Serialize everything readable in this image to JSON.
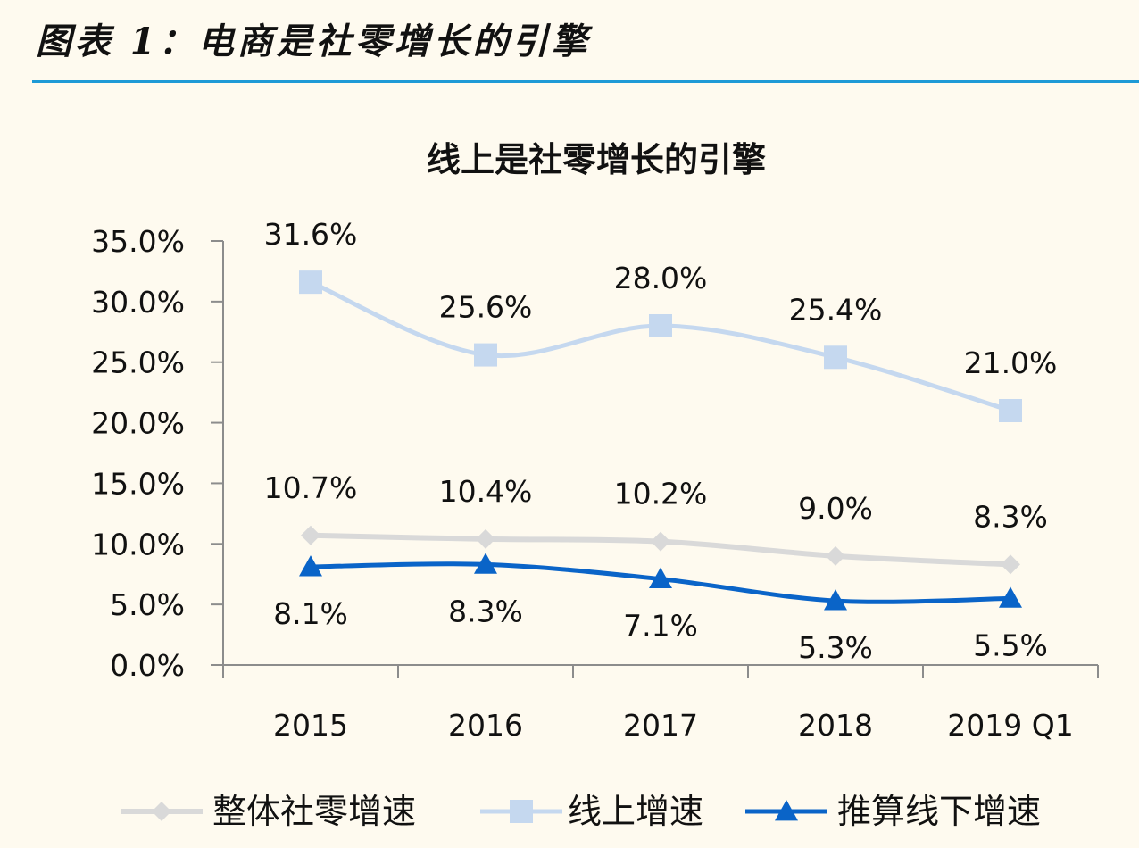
{
  "figure_caption": "图表 1：电商是社零增长的引擎",
  "colors": {
    "total": "#d9d9d9",
    "online": "#c5d8ef",
    "offline": "#0a64c8",
    "caption_rule": "#1e9ad6",
    "background": "#fefaef"
  },
  "chart_data": {
    "type": "line",
    "title": "线上是社零增长的引擎",
    "categories": [
      "2015",
      "2016",
      "2017",
      "2018",
      "2019 Q1"
    ],
    "ylim": [
      0,
      35
    ],
    "yticks": [
      "0.0%",
      "5.0%",
      "10.0%",
      "15.0%",
      "20.0%",
      "25.0%",
      "30.0%",
      "35.0%"
    ],
    "grid": false,
    "legend_position": "bottom",
    "series": [
      {
        "name": "整体社零增速",
        "marker": "diamond",
        "values": [
          10.7,
          10.4,
          10.2,
          9.0,
          8.3
        ],
        "labels": [
          "10.7%",
          "10.4%",
          "10.2%",
          "9.0%",
          "8.3%"
        ]
      },
      {
        "name": "线上增速",
        "marker": "square",
        "values": [
          31.6,
          25.6,
          28.0,
          25.4,
          21.0
        ],
        "labels": [
          "31.6%",
          "25.6%",
          "28.0%",
          "25.4%",
          "21.0%"
        ]
      },
      {
        "name": "推算线下增速",
        "marker": "triangle",
        "values": [
          8.1,
          8.3,
          7.1,
          5.3,
          5.5
        ],
        "labels": [
          "8.1%",
          "8.3%",
          "7.1%",
          "5.3%",
          "5.5%"
        ]
      }
    ]
  }
}
